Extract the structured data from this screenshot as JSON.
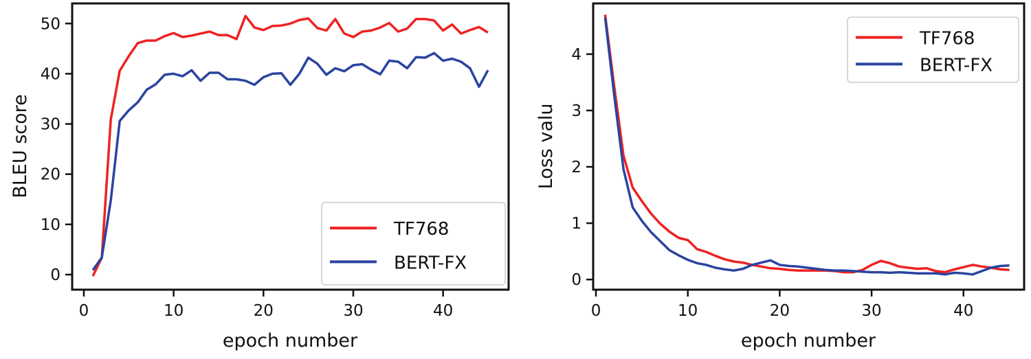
{
  "chart_data": [
    {
      "type": "line",
      "xlabel": "epoch number",
      "ylabel": "BLEU score",
      "xlim": [
        -1.3,
        47.3
      ],
      "ylim": [
        -3,
        54
      ],
      "xticks": [
        0,
        10,
        20,
        30,
        40
      ],
      "yticks": [
        0,
        10,
        20,
        30,
        40,
        50
      ],
      "grid": false,
      "legend_position": "lower-right",
      "x": [
        1,
        2,
        3,
        4,
        5,
        6,
        7,
        8,
        9,
        10,
        11,
        12,
        13,
        14,
        15,
        16,
        17,
        18,
        19,
        20,
        21,
        22,
        23,
        24,
        25,
        26,
        27,
        28,
        29,
        30,
        31,
        32,
        33,
        34,
        35,
        36,
        37,
        38,
        39,
        40,
        41,
        42,
        43,
        44,
        45
      ],
      "series": [
        {
          "name": "TF768",
          "color": "#ee2222",
          "values": [
            -0.3,
            3.4,
            30.9,
            40.6,
            43.5,
            46.1,
            46.6,
            46.6,
            47.5,
            48.1,
            47.3,
            47.6,
            48.0,
            48.4,
            47.7,
            47.7,
            46.9,
            51.5,
            49.2,
            48.7,
            49.5,
            49.6,
            50.0,
            50.7,
            51.0,
            49.1,
            48.6,
            50.9,
            48.0,
            47.3,
            48.4,
            48.6,
            49.2,
            50.1,
            48.4,
            49.0,
            50.9,
            50.9,
            50.6,
            48.6,
            49.8,
            48.0,
            48.7,
            49.3,
            48.2
          ]
        },
        {
          "name": "BERT-FX",
          "color": "#2a44a0",
          "values": [
            0.9,
            3.4,
            14.8,
            30.6,
            32.7,
            34.3,
            36.8,
            37.9,
            39.8,
            40.0,
            39.5,
            40.7,
            38.6,
            40.2,
            40.2,
            38.9,
            38.9,
            38.6,
            37.8,
            39.3,
            40.0,
            40.1,
            37.8,
            40.0,
            43.2,
            42.0,
            39.8,
            41.1,
            40.5,
            41.7,
            41.9,
            40.8,
            39.9,
            42.6,
            42.4,
            41.1,
            43.3,
            43.2,
            44.1,
            42.6,
            43.0,
            42.4,
            41.1,
            37.4,
            40.7
          ]
        }
      ]
    },
    {
      "type": "line",
      "xlabel": "epoch number",
      "ylabel": "Loss valu",
      "xlim": [
        -0.3,
        46.6
      ],
      "ylim": [
        -0.18,
        4.9
      ],
      "xticks": [
        0,
        10,
        20,
        30,
        40
      ],
      "yticks": [
        0,
        1,
        2,
        3,
        4
      ],
      "grid": false,
      "legend_position": "upper-right",
      "x": [
        1,
        2,
        3,
        4,
        5,
        6,
        7,
        8,
        9,
        10,
        11,
        12,
        13,
        14,
        15,
        16,
        17,
        18,
        19,
        20,
        21,
        22,
        23,
        24,
        25,
        26,
        27,
        28,
        29,
        30,
        31,
        32,
        33,
        34,
        35,
        36,
        37,
        38,
        39,
        40,
        41,
        42,
        43,
        44,
        45
      ],
      "series": [
        {
          "name": "TF768",
          "color": "#ee2222",
          "values": [
            4.7,
            3.42,
            2.2,
            1.63,
            1.39,
            1.17,
            0.99,
            0.85,
            0.74,
            0.7,
            0.54,
            0.49,
            0.42,
            0.36,
            0.32,
            0.3,
            0.26,
            0.23,
            0.2,
            0.19,
            0.17,
            0.16,
            0.16,
            0.16,
            0.16,
            0.15,
            0.13,
            0.13,
            0.17,
            0.26,
            0.33,
            0.29,
            0.23,
            0.21,
            0.19,
            0.2,
            0.15,
            0.13,
            0.18,
            0.22,
            0.26,
            0.23,
            0.21,
            0.18,
            0.17
          ]
        },
        {
          "name": "BERT-FX",
          "color": "#2a44a0",
          "values": [
            4.65,
            3.26,
            1.96,
            1.28,
            1.04,
            0.84,
            0.68,
            0.52,
            0.43,
            0.35,
            0.29,
            0.26,
            0.21,
            0.18,
            0.16,
            0.19,
            0.26,
            0.3,
            0.34,
            0.26,
            0.24,
            0.23,
            0.21,
            0.19,
            0.17,
            0.16,
            0.16,
            0.15,
            0.14,
            0.13,
            0.13,
            0.12,
            0.13,
            0.12,
            0.11,
            0.11,
            0.11,
            0.09,
            0.12,
            0.11,
            0.09,
            0.15,
            0.21,
            0.24,
            0.25
          ]
        }
      ]
    }
  ]
}
